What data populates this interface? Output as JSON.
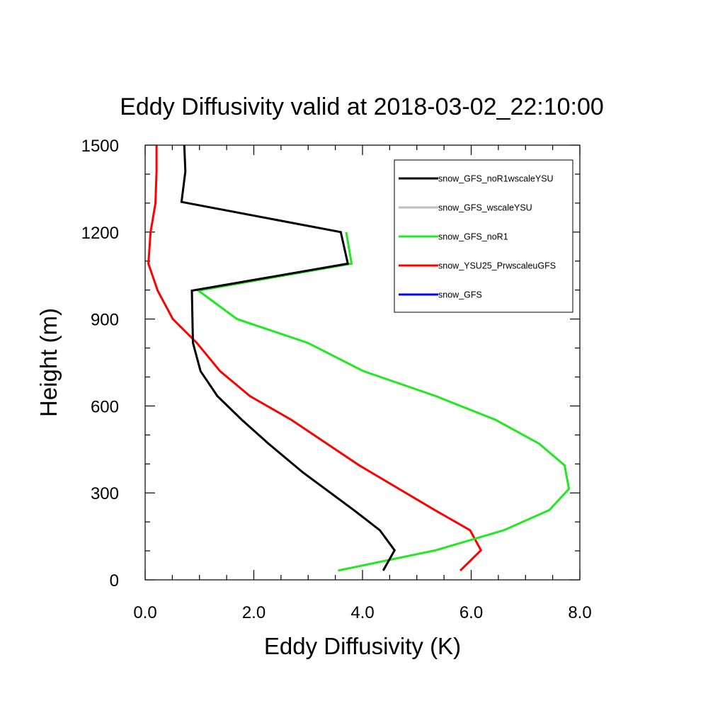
{
  "chart_data": {
    "type": "line",
    "title": "Eddy Diffusivity valid at 2018-03-02_22:10:00",
    "xlabel": "Eddy Diffusivity (K)",
    "ylabel": "Height (m)",
    "xlim": [
      0,
      8
    ],
    "ylim": [
      0,
      1500
    ],
    "xticks": [
      0,
      2,
      4,
      6,
      8
    ],
    "xtick_labels": [
      "0.0",
      "2.0",
      "4.0",
      "6.0",
      "8.0"
    ],
    "yticks": [
      0,
      300,
      600,
      900,
      1200,
      1500
    ],
    "ytick_labels": [
      "0",
      "300",
      "600",
      "900",
      "1200",
      "1500"
    ],
    "legend_position": "top-right",
    "series": [
      {
        "name": "snow_GFS_noR1wscaleYSU",
        "color": "#000000",
        "x": [
          4.38,
          4.59,
          4.32,
          3.84,
          2.9,
          2.27,
          1.78,
          1.33,
          1.02,
          0.88,
          0.86,
          3.73,
          3.6,
          0.67,
          0.74,
          0.72
        ],
        "y": [
          32,
          102,
          171,
          241,
          371,
          470,
          552,
          634,
          720,
          818,
          998,
          1091,
          1200,
          1304,
          1409,
          1500
        ]
      },
      {
        "name": "snow_GFS_wscaleYSU",
        "color": "#bfbfbf",
        "x": [],
        "y": []
      },
      {
        "name": "snow_GFS_noR1",
        "color": "#22e822",
        "x": [
          3.55,
          5.35,
          6.6,
          7.44,
          7.8,
          7.72,
          7.25,
          6.45,
          5.35,
          4.02,
          2.99,
          1.69,
          0.98,
          3.8,
          3.7
        ],
        "y": [
          32,
          102,
          171,
          241,
          314,
          395,
          470,
          552,
          634,
          720,
          818,
          900,
          998,
          1091,
          1200
        ]
      },
      {
        "name": "snow_YSU25_PrwscaleuGFS",
        "color": "#ff0000",
        "x": [
          5.8,
          6.18,
          5.98,
          5.33,
          3.94,
          2.69,
          1.93,
          1.38,
          0.95,
          0.51,
          0.23,
          0.06,
          0.1,
          0.19,
          0.21,
          0.21
        ],
        "y": [
          32,
          102,
          171,
          241,
          395,
          552,
          634,
          720,
          818,
          900,
          998,
          1091,
          1200,
          1300,
          1409,
          1500
        ]
      },
      {
        "name": "snow_GFS",
        "color": "#0000ff",
        "x": [],
        "y": []
      }
    ]
  }
}
